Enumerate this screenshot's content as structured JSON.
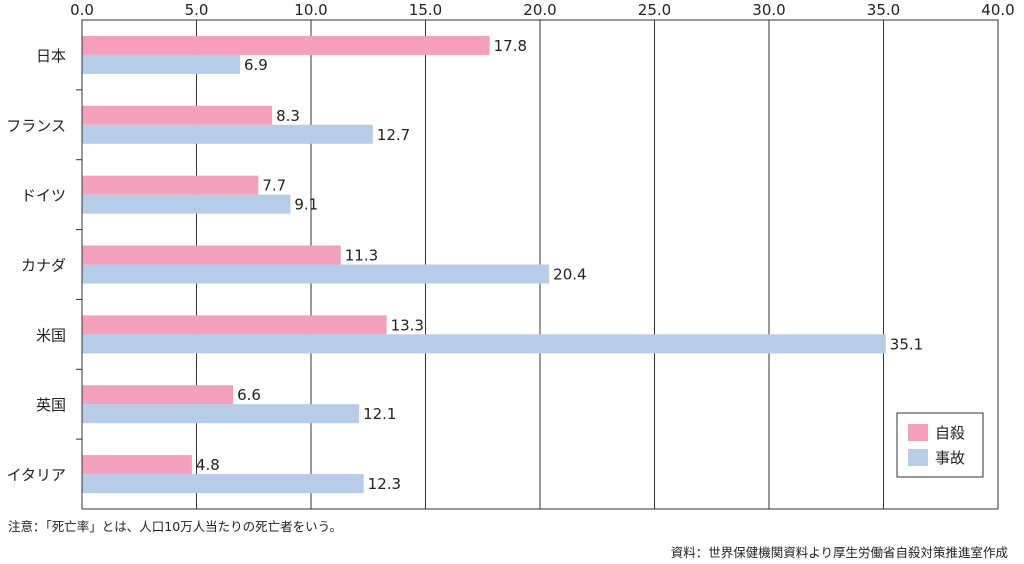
{
  "chart_data": {
    "type": "bar",
    "orientation": "horizontal",
    "categories": [
      "日本",
      "フランス",
      "ドイツ",
      "カナダ",
      "米国",
      "英国",
      "イタリア"
    ],
    "series": [
      {
        "name": "自殺",
        "values": [
          17.8,
          8.3,
          7.7,
          11.3,
          13.3,
          6.6,
          4.8
        ],
        "color": "#f4a0bd"
      },
      {
        "name": "事故",
        "values": [
          6.9,
          12.7,
          9.1,
          20.4,
          35.1,
          12.1,
          12.3
        ],
        "color": "#b7cce8"
      }
    ],
    "xlim": [
      0,
      40
    ],
    "xticks": [
      "0.0",
      "5.0",
      "10.0",
      "15.0",
      "20.0",
      "25.0",
      "30.0",
      "35.0",
      "40.0"
    ],
    "xtick_values": [
      0,
      5,
      10,
      15,
      20,
      25,
      30,
      35,
      40
    ],
    "axis_position": "top",
    "grid": true,
    "legend_position": "bottom-right"
  },
  "footer": {
    "note": "注意：「死亡率」とは、人口10万人当たりの死亡者をいう。",
    "source": "資料：世界保健機関資料より厚生労働省自殺対策推進室作成"
  }
}
